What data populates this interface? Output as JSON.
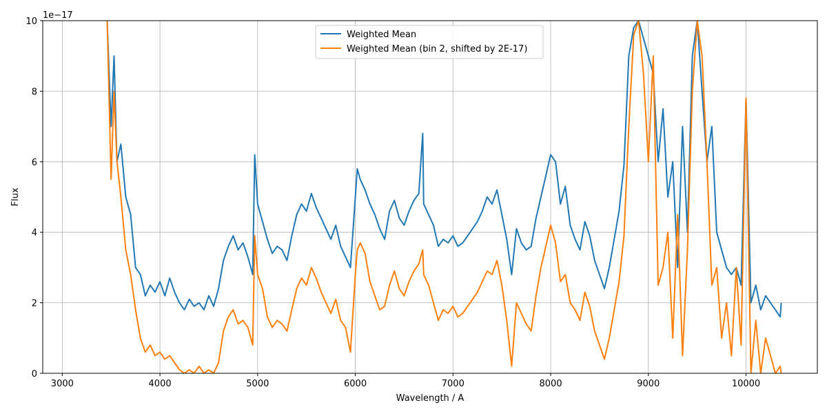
{
  "chart_data": {
    "type": "line",
    "title": "",
    "xlabel": "Wavelength / A",
    "ylabel": "Flux",
    "y_scale_note": "1e−17",
    "xlim": [
      2800,
      10730
    ],
    "ylim": [
      0,
      10
    ],
    "x_ticks": [
      3000,
      4000,
      5000,
      6000,
      7000,
      8000,
      9000,
      10000
    ],
    "y_ticks": [
      0,
      2,
      4,
      6,
      8,
      10
    ],
    "grid": true,
    "legend_position": "top-center",
    "series": [
      {
        "name": "Weighted Mean",
        "color": "#1f77b4",
        "x": [
          3460,
          3500,
          3530,
          3560,
          3600,
          3650,
          3700,
          3750,
          3800,
          3850,
          3900,
          3950,
          4000,
          4050,
          4100,
          4150,
          4200,
          4250,
          4300,
          4350,
          4400,
          4450,
          4500,
          4550,
          4600,
          4650,
          4700,
          4750,
          4800,
          4850,
          4900,
          4950,
          4970,
          5000,
          5050,
          5100,
          5150,
          5200,
          5250,
          5300,
          5350,
          5400,
          5450,
          5500,
          5550,
          5600,
          5650,
          5700,
          5750,
          5800,
          5850,
          5900,
          5950,
          6000,
          6020,
          6050,
          6100,
          6150,
          6200,
          6250,
          6300,
          6350,
          6400,
          6450,
          6500,
          6550,
          6600,
          6650,
          6690,
          6700,
          6750,
          6800,
          6850,
          6900,
          6950,
          7000,
          7050,
          7100,
          7150,
          7200,
          7250,
          7300,
          7350,
          7400,
          7450,
          7500,
          7550,
          7600,
          7650,
          7700,
          7750,
          7800,
          7850,
          7900,
          7950,
          8000,
          8050,
          8100,
          8150,
          8200,
          8250,
          8300,
          8350,
          8400,
          8450,
          8500,
          8550,
          8600,
          8650,
          8700,
          8750,
          8800,
          8850,
          8900,
          8950,
          9000,
          9050,
          9100,
          9150,
          9200,
          9250,
          9300,
          9350,
          9400,
          9450,
          9500,
          9550,
          9600,
          9650,
          9700,
          9750,
          9800,
          9850,
          9900,
          9950,
          10000,
          10050,
          10100,
          10150,
          10200,
          10250,
          10300,
          10350,
          10360
        ],
        "y": [
          10,
          7,
          9,
          6,
          6.5,
          5,
          4.5,
          3,
          2.8,
          2.2,
          2.5,
          2.3,
          2.6,
          2.2,
          2.7,
          2.3,
          2.0,
          1.8,
          2.1,
          1.9,
          2.0,
          1.8,
          2.2,
          1.9,
          2.4,
          3.2,
          3.6,
          3.9,
          3.5,
          3.7,
          3.3,
          2.8,
          6.2,
          4.8,
          4.3,
          3.8,
          3.4,
          3.6,
          3.5,
          3.2,
          3.9,
          4.5,
          4.8,
          4.6,
          5.1,
          4.7,
          4.4,
          4.1,
          3.8,
          4.2,
          3.6,
          3.3,
          3.0,
          5.0,
          5.8,
          5.5,
          5.2,
          4.8,
          4.5,
          4.1,
          3.8,
          4.6,
          4.9,
          4.4,
          4.2,
          4.6,
          4.9,
          5.1,
          6.8,
          4.8,
          4.5,
          4.2,
          3.6,
          3.8,
          3.7,
          3.9,
          3.6,
          3.7,
          3.9,
          4.1,
          4.3,
          4.6,
          5.0,
          4.8,
          5.2,
          4.5,
          3.8,
          2.8,
          4.1,
          3.7,
          3.5,
          3.6,
          4.4,
          5.0,
          5.6,
          6.2,
          6.0,
          4.8,
          5.3,
          4.2,
          3.8,
          3.5,
          4.3,
          3.9,
          3.2,
          2.8,
          2.4,
          3.0,
          3.8,
          4.6,
          5.9,
          9.0,
          9.8,
          10,
          9.5,
          9,
          8.5,
          6,
          7.5,
          5,
          6,
          3,
          7,
          4,
          9,
          10,
          8,
          6,
          7,
          4,
          3.5,
          3,
          2.8,
          3,
          2.5,
          7.8,
          2,
          2.5,
          1.8,
          2.2,
          2,
          1.8,
          1.6,
          2
        ],
        "line_width": 2
      },
      {
        "name": "Weighted Mean (bin 2, shifted by 2E-17)",
        "color": "#ff7f0e",
        "x": [
          3460,
          3500,
          3530,
          3560,
          3600,
          3650,
          3700,
          3750,
          3800,
          3850,
          3900,
          3950,
          4000,
          4050,
          4100,
          4150,
          4200,
          4250,
          4300,
          4350,
          4400,
          4450,
          4500,
          4550,
          4600,
          4650,
          4700,
          4750,
          4800,
          4850,
          4900,
          4950,
          4970,
          5000,
          5050,
          5100,
          5150,
          5200,
          5250,
          5300,
          5350,
          5400,
          5450,
          5500,
          5550,
          5600,
          5650,
          5700,
          5750,
          5800,
          5850,
          5900,
          5950,
          6000,
          6020,
          6050,
          6100,
          6150,
          6200,
          6250,
          6300,
          6350,
          6400,
          6450,
          6500,
          6550,
          6600,
          6650,
          6690,
          6700,
          6750,
          6800,
          6850,
          6900,
          6950,
          7000,
          7050,
          7100,
          7150,
          7200,
          7250,
          7300,
          7350,
          7400,
          7450,
          7500,
          7550,
          7600,
          7650,
          7700,
          7750,
          7800,
          7850,
          7900,
          7950,
          8000,
          8050,
          8100,
          8150,
          8200,
          8250,
          8300,
          8350,
          8400,
          8450,
          8500,
          8550,
          8600,
          8650,
          8700,
          8750,
          8800,
          8850,
          8900,
          8950,
          9000,
          9050,
          9100,
          9150,
          9200,
          9250,
          9300,
          9350,
          9400,
          9450,
          9500,
          9550,
          9600,
          9650,
          9700,
          9750,
          9800,
          9850,
          9900,
          9950,
          10000,
          10050,
          10100,
          10150,
          10200,
          10250,
          10300,
          10350,
          10360
        ],
        "y": [
          10,
          5.5,
          8,
          6,
          5,
          3.5,
          2.8,
          1.8,
          1.0,
          0.6,
          0.8,
          0.5,
          0.6,
          0.4,
          0.5,
          0.3,
          0.1,
          0.0,
          0.1,
          0.0,
          0.2,
          0.0,
          0.1,
          0.0,
          0.3,
          1.2,
          1.6,
          1.8,
          1.4,
          1.5,
          1.3,
          0.8,
          3.9,
          2.8,
          2.4,
          1.6,
          1.3,
          1.5,
          1.4,
          1.2,
          1.8,
          2.4,
          2.7,
          2.5,
          3.0,
          2.7,
          2.3,
          2.0,
          1.7,
          2.1,
          1.5,
          1.3,
          0.6,
          2.8,
          3.5,
          3.7,
          3.4,
          2.6,
          2.2,
          1.8,
          1.9,
          2.5,
          2.9,
          2.4,
          2.2,
          2.6,
          2.9,
          3.1,
          3.5,
          2.8,
          2.5,
          2.0,
          1.5,
          1.8,
          1.7,
          1.9,
          1.6,
          1.7,
          1.9,
          2.1,
          2.3,
          2.6,
          2.9,
          2.8,
          3.2,
          2.5,
          1.5,
          0.2,
          2.0,
          1.7,
          1.4,
          1.2,
          2.2,
          3.0,
          3.6,
          4.2,
          3.7,
          2.6,
          2.8,
          2.0,
          1.8,
          1.5,
          2.3,
          1.9,
          1.2,
          0.8,
          0.4,
          1.0,
          1.8,
          2.6,
          3.9,
          7.0,
          9.6,
          10,
          8.5,
          6,
          9,
          2.5,
          3,
          4,
          1,
          4.5,
          0.5,
          3.5,
          8,
          10,
          9,
          6,
          2.5,
          3,
          1,
          2,
          0.5,
          3,
          0.8,
          7.8,
          0,
          1.5,
          0,
          1,
          0.5,
          0,
          0.2,
          0
        ],
        "line_width": 2
      }
    ]
  }
}
